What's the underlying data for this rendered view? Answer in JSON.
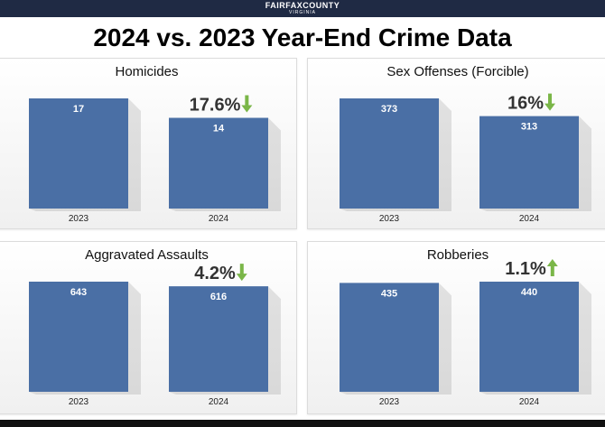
{
  "header": {
    "logo_main": "FAIRFAXCOUNTY",
    "logo_sub": "VIRGINIA"
  },
  "title": "2024 vs. 2023 Year-End Crime Data",
  "colors": {
    "bar": "#4a6fa5",
    "arrow": "#7ab648",
    "header_bg": "#1f2a44"
  },
  "chart_data": [
    {
      "type": "bar",
      "title": "Homicides",
      "categories": [
        "2023",
        "2024"
      ],
      "values": [
        17,
        14
      ],
      "ylim": [
        0,
        17
      ],
      "change": {
        "label": "17.6%",
        "direction": "down"
      }
    },
    {
      "type": "bar",
      "title": "Sex Offenses (Forcible)",
      "categories": [
        "2023",
        "2024"
      ],
      "values": [
        373,
        313
      ],
      "ylim": [
        0,
        373
      ],
      "change": {
        "label": "16%",
        "direction": "down"
      }
    },
    {
      "type": "bar",
      "title": "Aggravated Assaults",
      "categories": [
        "2023",
        "2024"
      ],
      "values": [
        643,
        616
      ],
      "ylim": [
        0,
        643
      ],
      "change": {
        "label": "4.2%",
        "direction": "down"
      }
    },
    {
      "type": "bar",
      "title": "Robberies",
      "categories": [
        "2023",
        "2024"
      ],
      "values": [
        435,
        440
      ],
      "ylim": [
        0,
        440
      ],
      "change": {
        "label": "1.1%",
        "direction": "up"
      }
    }
  ]
}
